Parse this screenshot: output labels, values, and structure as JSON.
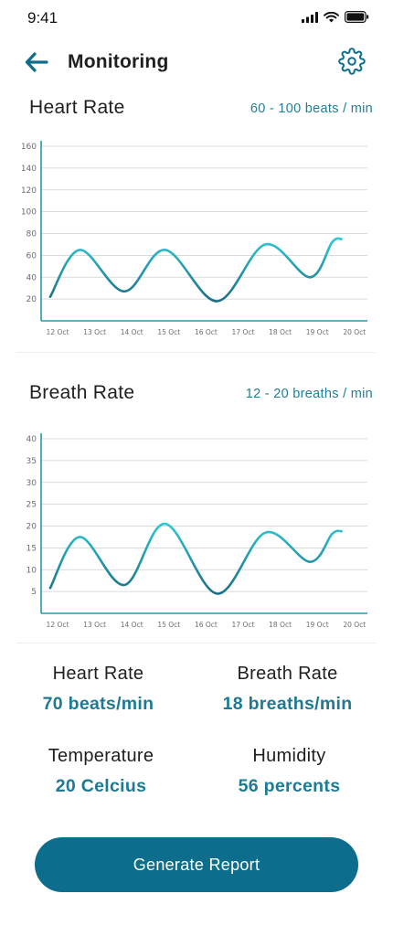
{
  "status_bar": {
    "time": "9:41"
  },
  "header": {
    "title": "Monitoring"
  },
  "heart_section": {
    "title": "Heart Rate",
    "range": "60 - 100 beats / min"
  },
  "breath_section": {
    "title": "Breath Rate",
    "range": "12 - 20 breaths / min"
  },
  "colors": {
    "accent": "#0c6e8c",
    "value_text": "#1c7a93",
    "line_start": "#2ec7d4",
    "line_end": "#1a6f86"
  },
  "chart_data": [
    {
      "type": "line",
      "categories": [
        "12 Oct",
        "13 Oct",
        "14 Oct",
        "15 Oct",
        "16 Oct",
        "17 Oct",
        "18 Oct",
        "19 Oct",
        "20 Oct"
      ],
      "series": [
        {
          "x": [
            11.8,
            12.6,
            13.8,
            14.9,
            16.3,
            17.6,
            18.8,
            19.4,
            19.65
          ],
          "values": [
            22,
            65,
            27,
            65,
            18,
            70,
            40,
            72,
            75
          ]
        }
      ],
      "yticks": [
        20,
        40,
        60,
        80,
        100,
        120,
        140,
        160
      ],
      "ylim": [
        0,
        160
      ],
      "grid": true
    },
    {
      "type": "line",
      "categories": [
        "12 Oct",
        "13 Oct",
        "14 Oct",
        "15 Oct",
        "16 Oct",
        "17 Oct",
        "18 Oct",
        "19 Oct",
        "20 Oct"
      ],
      "series": [
        {
          "x": [
            11.8,
            12.6,
            13.8,
            14.9,
            16.3,
            17.6,
            18.8,
            19.4,
            19.65
          ],
          "values": [
            5.8,
            17.5,
            6.5,
            20.5,
            4.5,
            18.5,
            11.8,
            18.2,
            18.8
          ]
        }
      ],
      "yticks": [
        5,
        10,
        15,
        20,
        25,
        30,
        35,
        40
      ],
      "ylim": [
        0,
        40
      ],
      "grid": true
    }
  ],
  "stats": {
    "heart": {
      "label": "Heart Rate",
      "value": "70 beats/min"
    },
    "breath": {
      "label": "Breath Rate",
      "value": "18 breaths/min"
    },
    "temperature": {
      "label": "Temperature",
      "value": "20 Celcius"
    },
    "humidity": {
      "label": "Humidity",
      "value": "56 percents"
    }
  },
  "report_button": {
    "label": "Generate Report"
  }
}
